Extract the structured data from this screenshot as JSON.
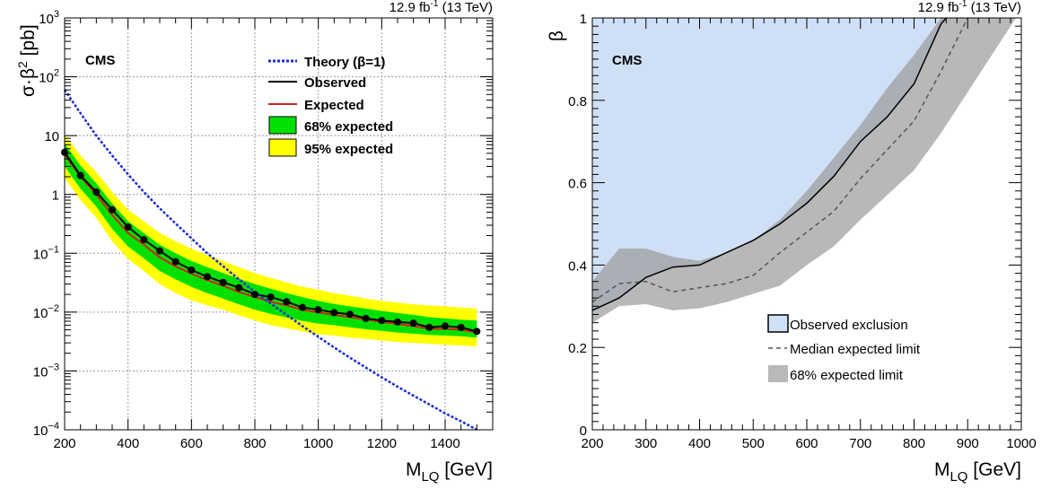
{
  "chart_data": [
    {
      "type": "line",
      "header_label": "12.9 fb",
      "header_sup": "-1",
      "header_energy": " (13 TeV)",
      "experiment": "CMS",
      "xlabel_main": "M",
      "xlabel_sub": "LQ",
      "xlabel_unit": " [GeV]",
      "ylabel_main": "σ·β",
      "ylabel_sup": "2",
      "ylabel_unit": " [pb]",
      "y_scale": "log",
      "xlim": [
        200,
        1550
      ],
      "ylim": [
        0.0001,
        1000
      ],
      "grid": true,
      "x_ticks": [
        200,
        400,
        600,
        800,
        1000,
        1200,
        1400
      ],
      "y_ticks": [
        {
          "v": 0.0001,
          "base": "10",
          "exp": "−4"
        },
        {
          "v": 0.001,
          "base": "10",
          "exp": "−3"
        },
        {
          "v": 0.01,
          "base": "10",
          "exp": "−2"
        },
        {
          "v": 0.1,
          "base": "10",
          "exp": "−1"
        },
        {
          "v": 1,
          "base": "1",
          "exp": ""
        },
        {
          "v": 10,
          "base": "10",
          "exp": ""
        },
        {
          "v": 100,
          "base": "10",
          "exp": "2"
        },
        {
          "v": 1000,
          "base": "10",
          "exp": "3"
        }
      ],
      "legend": {
        "position": "top-right",
        "entries": [
          {
            "key": "theory",
            "label": "Theory (β=1)"
          },
          {
            "key": "observed",
            "label": "Observed"
          },
          {
            "key": "expected",
            "label": "Expected"
          },
          {
            "key": "band68",
            "label": "68% expected"
          },
          {
            "key": "band95",
            "label": "95% expected"
          }
        ]
      },
      "colors": {
        "theory": "#1a2ed6",
        "observed": "#000000",
        "expected": "#d42020",
        "band68": "#00e000",
        "band95": "#ffff00",
        "grid": "#999999"
      },
      "x": [
        200,
        250,
        300,
        350,
        400,
        450,
        500,
        550,
        600,
        650,
        700,
        750,
        800,
        850,
        900,
        950,
        1000,
        1050,
        1100,
        1150,
        1200,
        1250,
        1300,
        1350,
        1400,
        1450,
        1500
      ],
      "series": [
        {
          "key": "observed",
          "name": "Observed",
          "values": [
            5.2,
            2.1,
            1.1,
            0.55,
            0.28,
            0.17,
            0.11,
            0.072,
            0.052,
            0.04,
            0.032,
            0.026,
            0.02,
            0.018,
            0.015,
            0.012,
            0.011,
            0.0098,
            0.0092,
            0.0078,
            0.0072,
            0.0068,
            0.0065,
            0.0055,
            0.0058,
            0.0055,
            0.0047
          ]
        },
        {
          "key": "expected",
          "name": "Expected",
          "values": [
            4.8,
            2.0,
            1.0,
            0.45,
            0.22,
            0.14,
            0.085,
            0.06,
            0.045,
            0.035,
            0.028,
            0.022,
            0.018,
            0.015,
            0.013,
            0.011,
            0.0098,
            0.009,
            0.0082,
            0.0075,
            0.0068,
            0.0063,
            0.0058,
            0.0052,
            0.0052,
            0.005,
            0.0045
          ]
        },
        {
          "key": "theory",
          "name": "Theory (β=1)",
          "values": [
            60,
            24,
            10,
            4.6,
            2.2,
            1.1,
            0.58,
            0.32,
            0.18,
            0.1,
            0.06,
            0.036,
            0.022,
            0.014,
            0.009,
            0.0058,
            0.0038,
            0.0025,
            0.00168,
            0.00114,
            0.00078,
            0.00054,
            0.00038,
            0.00027,
            0.00019,
            0.00014,
            0.0001
          ]
        }
      ],
      "bands": [
        {
          "key": "band95",
          "name": "95% expected",
          "low": [
            1.9,
            0.8,
            0.4,
            0.16,
            0.08,
            0.05,
            0.03,
            0.021,
            0.016,
            0.013,
            0.011,
            0.0088,
            0.0072,
            0.006,
            0.0053,
            0.0047,
            0.0042,
            0.004,
            0.0037,
            0.0035,
            0.0033,
            0.0031,
            0.003,
            0.0029,
            0.0028,
            0.0027,
            0.0026
          ],
          "high": [
            10.5,
            4.6,
            2.4,
            1.1,
            0.55,
            0.35,
            0.22,
            0.16,
            0.12,
            0.092,
            0.074,
            0.058,
            0.046,
            0.038,
            0.032,
            0.027,
            0.024,
            0.021,
            0.019,
            0.017,
            0.0155,
            0.0145,
            0.0135,
            0.013,
            0.0125,
            0.012,
            0.0115
          ]
        },
        {
          "key": "band68",
          "name": "68% expected",
          "low": [
            3.0,
            1.25,
            0.62,
            0.26,
            0.13,
            0.082,
            0.05,
            0.036,
            0.027,
            0.021,
            0.017,
            0.0135,
            0.011,
            0.0093,
            0.0081,
            0.0071,
            0.0064,
            0.006,
            0.0055,
            0.0051,
            0.0048,
            0.0045,
            0.0043,
            0.0041,
            0.004,
            0.0039,
            0.0037
          ],
          "high": [
            7.4,
            3.1,
            1.55,
            0.7,
            0.35,
            0.22,
            0.14,
            0.1,
            0.074,
            0.058,
            0.046,
            0.037,
            0.03,
            0.025,
            0.021,
            0.018,
            0.0155,
            0.0138,
            0.0125,
            0.0115,
            0.0105,
            0.0097,
            0.009,
            0.0082,
            0.0078,
            0.0074,
            0.0072
          ]
        }
      ]
    },
    {
      "type": "area",
      "header_label": "12.9 fb",
      "header_sup": "-1",
      "header_energy": " (13 TeV)",
      "experiment": "CMS",
      "xlabel_main": "M",
      "xlabel_sub": "LQ",
      "xlabel_unit": " [GeV]",
      "ylabel": "β",
      "xlim": [
        200,
        1000
      ],
      "ylim": [
        0,
        1
      ],
      "grid": false,
      "x_ticks": [
        200,
        300,
        400,
        500,
        600,
        700,
        800,
        900,
        1000
      ],
      "y_ticks": [
        0,
        0.2,
        0.4,
        0.6,
        0.8,
        1
      ],
      "y_tick_labels": [
        "0",
        "0.2",
        "0.4",
        "0.6",
        "0.8",
        "1"
      ],
      "legend": {
        "position": "bottom-right",
        "entries": [
          {
            "key": "observed",
            "label": "Observed exclusion"
          },
          {
            "key": "median",
            "label": "Median expected limit"
          },
          {
            "key": "band68",
            "label": "68% expected limit"
          }
        ]
      },
      "colors": {
        "observed_fill": "#cfe0f6",
        "observed_line": "#000000",
        "median": "#555555",
        "band68": "#b9b9b9"
      },
      "observed": {
        "x": [
          200,
          250,
          300,
          350,
          400,
          450,
          500,
          550,
          600,
          650,
          700,
          750,
          800,
          850,
          860
        ],
        "y": [
          0.29,
          0.32,
          0.37,
          0.395,
          0.4,
          0.43,
          0.46,
          0.5,
          0.55,
          0.615,
          0.7,
          0.76,
          0.84,
          0.985,
          1.0
        ]
      },
      "median": {
        "x": [
          200,
          250,
          300,
          350,
          400,
          450,
          500,
          550,
          600,
          650,
          700,
          750,
          800,
          850,
          900
        ],
        "y": [
          0.31,
          0.355,
          0.36,
          0.335,
          0.345,
          0.355,
          0.375,
          0.43,
          0.48,
          0.53,
          0.61,
          0.68,
          0.75,
          0.87,
          1.0
        ]
      },
      "band68": {
        "x": [
          200,
          250,
          300,
          350,
          400,
          450,
          500,
          550,
          600,
          650,
          700,
          750,
          800,
          850,
          880,
          950,
          990
        ],
        "low": [
          0.26,
          0.3,
          0.305,
          0.29,
          0.295,
          0.31,
          0.33,
          0.35,
          0.4,
          0.445,
          0.51,
          0.57,
          0.63,
          0.72,
          0.78,
          0.92,
          1.0
        ],
        "high": [
          0.36,
          0.44,
          0.44,
          0.42,
          0.41,
          0.43,
          0.46,
          0.51,
          0.58,
          0.66,
          0.74,
          0.83,
          0.91,
          1.0,
          1.0,
          1.0,
          1.0
        ]
      }
    }
  ]
}
